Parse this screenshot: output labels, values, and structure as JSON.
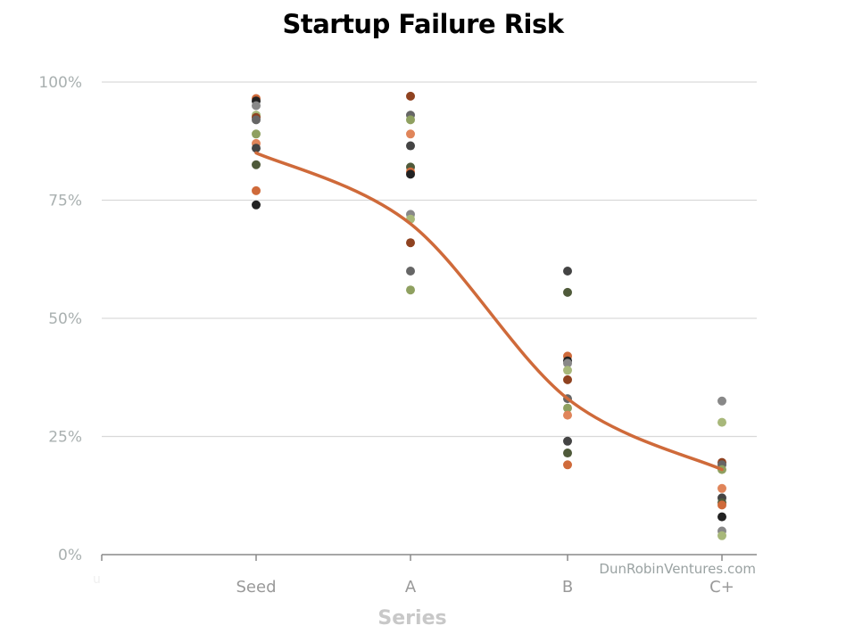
{
  "chart_data": {
    "type": "scatter",
    "title": "Startup Failure Risk",
    "xlabel": "Series",
    "ylabel": "",
    "categories": [
      "Seed",
      "A",
      "B",
      "C+"
    ],
    "y_ticks": [
      "0%",
      "25%",
      "50%",
      "75%",
      "100%"
    ],
    "ylim": [
      0,
      100
    ],
    "grid": true,
    "points": [
      {
        "category": "Seed",
        "values": [
          96.5,
          96,
          95,
          93,
          92.5,
          92,
          89,
          87,
          86,
          82.5,
          77,
          74
        ]
      },
      {
        "category": "A",
        "values": [
          97,
          93,
          92,
          89,
          86.5,
          82,
          81,
          80.5,
          72,
          71,
          66,
          60,
          56
        ]
      },
      {
        "category": "B",
        "values": [
          60,
          55.5,
          42,
          41,
          40.5,
          39,
          37,
          33,
          31,
          29.5,
          24,
          21.5,
          19
        ]
      },
      {
        "category": "C+",
        "values": [
          32.5,
          28,
          19.5,
          19,
          18,
          14,
          12,
          11,
          10.5,
          8,
          5,
          4
        ]
      }
    ],
    "trend": {
      "type": "line",
      "color": "#cf6a3a",
      "values": [
        85,
        70,
        33,
        18
      ]
    },
    "point_colors": [
      "#cf6a3a",
      "#e0855a",
      "#8f4220",
      "#222222",
      "#444444",
      "#666666",
      "#888888",
      "#4f5a3a",
      "#8fa060",
      "#a8b87a"
    ]
  },
  "watermark": "DunRobinVentures.com",
  "corner_glyph": "u"
}
